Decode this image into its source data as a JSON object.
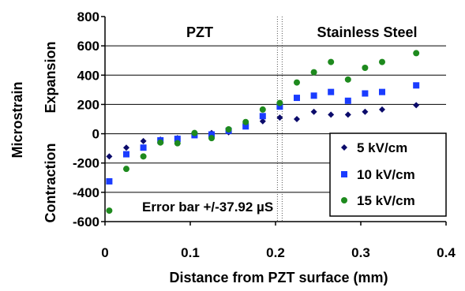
{
  "chart_data": {
    "type": "scatter",
    "xlabel": "Distance from PZT surface (mm)",
    "ylabel": "Microstrain",
    "y_upper_label": "Expansion",
    "y_lower_label": "Contraction",
    "xlim": [
      0,
      0.4
    ],
    "ylim": [
      -600,
      800
    ],
    "x_ticks": [
      "0",
      "0.1",
      "0.2",
      "0.3",
      "0.4"
    ],
    "y_ticks": [
      "-600",
      "-400",
      "-200",
      "0",
      "200",
      "400",
      "600",
      "800"
    ],
    "grid": "horizontal",
    "boundary_x": 0.205,
    "region_labels": [
      "PZT",
      "Stainless Steel"
    ],
    "annotation": "Error bar +/-37.92 µS",
    "legend_position": "lower-right",
    "series": [
      {
        "name": "5 kV/cm",
        "color": "#0b0b6b",
        "marker": "diamond",
        "x": [
          0.005,
          0.025,
          0.045,
          0.065,
          0.085,
          0.105,
          0.125,
          0.145,
          0.165,
          0.185,
          0.205,
          0.225,
          0.245,
          0.265,
          0.285,
          0.305,
          0.325,
          0.365
        ],
        "y": [
          -155,
          -95,
          -50,
          -40,
          -30,
          0,
          5,
          10,
          60,
          85,
          110,
          100,
          150,
          130,
          130,
          150,
          165,
          195
        ]
      },
      {
        "name": "10 kV/cm",
        "color": "#1a3cff",
        "marker": "square",
        "x": [
          0.005,
          0.025,
          0.045,
          0.065,
          0.085,
          0.105,
          0.125,
          0.145,
          0.165,
          0.185,
          0.205,
          0.225,
          0.245,
          0.265,
          0.285,
          0.305,
          0.325,
          0.365
        ],
        "y": [
          -325,
          -140,
          -95,
          -45,
          -35,
          -10,
          -5,
          20,
          50,
          120,
          185,
          245,
          260,
          285,
          225,
          275,
          285,
          330
        ]
      },
      {
        "name": "15 kV/cm",
        "color": "#1e8a1e",
        "marker": "circle",
        "x": [
          0.005,
          0.025,
          0.045,
          0.065,
          0.085,
          0.105,
          0.125,
          0.145,
          0.165,
          0.185,
          0.205,
          0.225,
          0.245,
          0.265,
          0.285,
          0.305,
          0.325,
          0.365
        ],
        "y": [
          -525,
          -240,
          -155,
          -60,
          -65,
          5,
          -30,
          30,
          80,
          165,
          210,
          350,
          420,
          490,
          370,
          450,
          490,
          550
        ]
      }
    ]
  }
}
